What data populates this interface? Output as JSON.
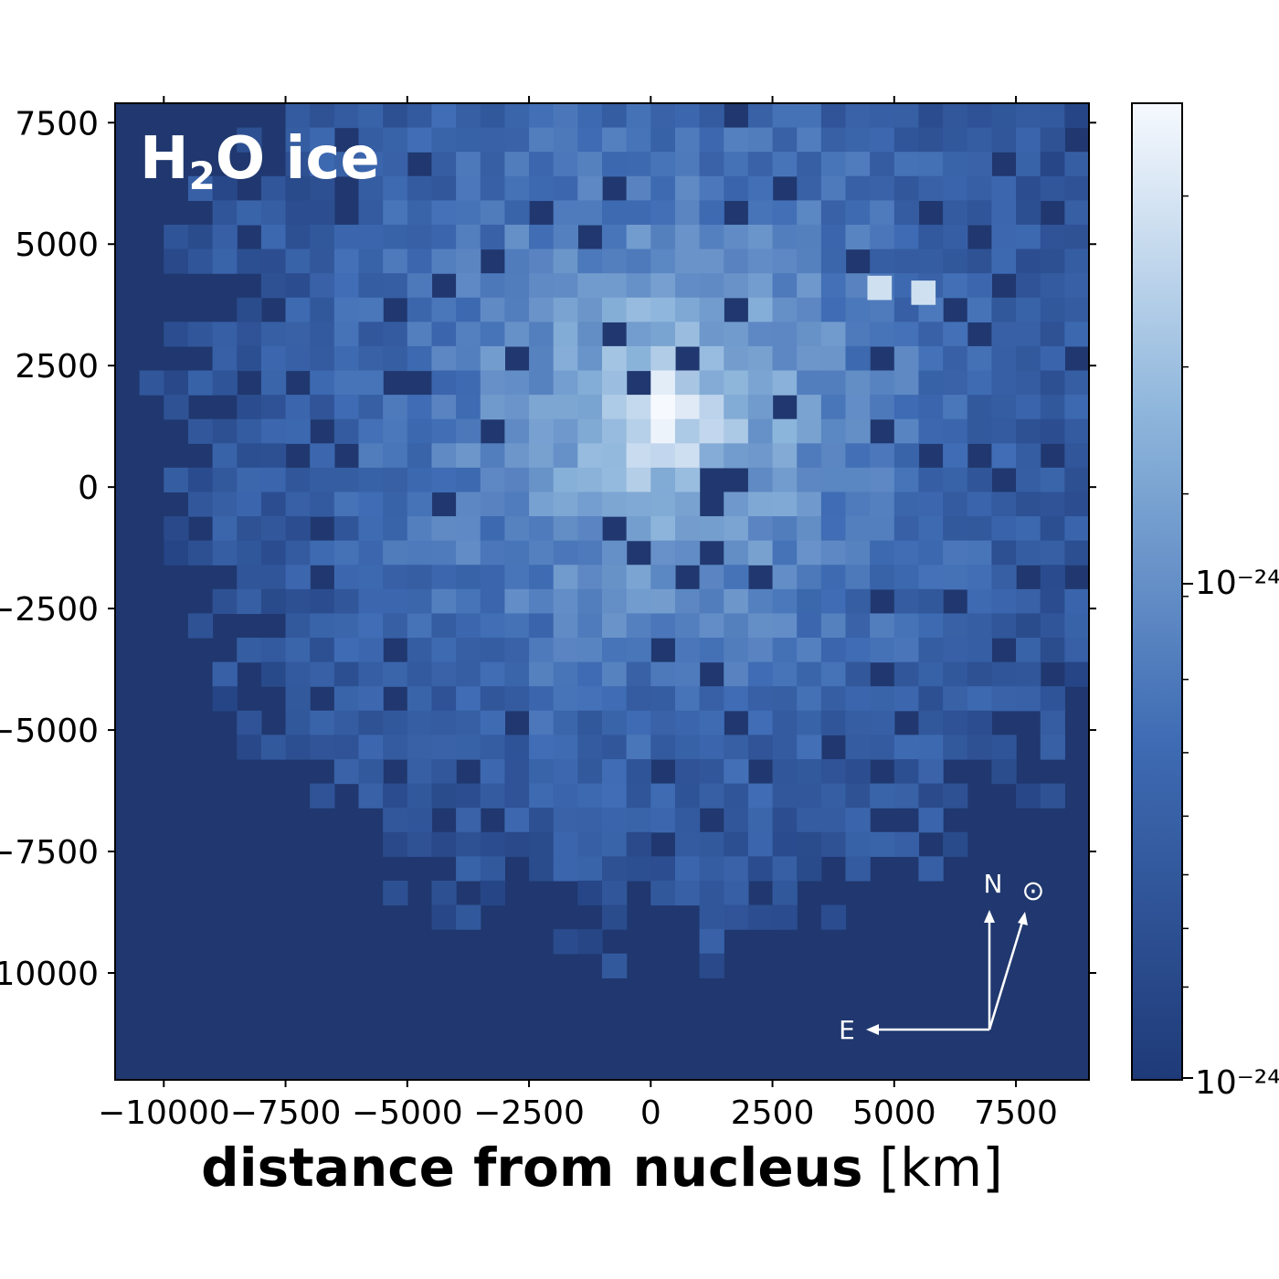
{
  "chart_data": {
    "type": "heatmap",
    "panel_label": {
      "main": "H",
      "subscript": "2",
      "rest": "O ice"
    },
    "xlabel": {
      "bold": "distance from nucleus",
      "unit": "[km]"
    },
    "ylabel": "",
    "xlim": [
      -11000,
      9000
    ],
    "ylim": [
      -12200,
      7900
    ],
    "x_ticks": [
      {
        "value": -10000,
        "label": "−10000"
      },
      {
        "value": -7500,
        "label": "−7500"
      },
      {
        "value": -5000,
        "label": "−5000"
      },
      {
        "value": -2500,
        "label": "−2500"
      },
      {
        "value": 0,
        "label": "0"
      },
      {
        "value": 2500,
        "label": "2500"
      },
      {
        "value": 5000,
        "label": "5000"
      },
      {
        "value": 7500,
        "label": "7500"
      }
    ],
    "y_ticks": [
      {
        "value": 7500,
        "label": "7500"
      },
      {
        "value": 5000,
        "label": "5000"
      },
      {
        "value": 2500,
        "label": "2500"
      },
      {
        "value": 0,
        "label": "0"
      },
      {
        "value": -2500,
        "label": "−2500"
      },
      {
        "value": -5000,
        "label": "−5000"
      },
      {
        "value": -7500,
        "label": "−7500"
      },
      {
        "value": -10000,
        "label": "−10000"
      }
    ],
    "grid": false,
    "pixel_size_km": 500,
    "peak_position_km": [
      300,
      0
    ],
    "bright_spots_km": [
      [
        4700,
        4100
      ],
      [
        5600,
        4000
      ]
    ],
    "colorbar": {
      "scale": "log",
      "colors": [
        "#1f3a78",
        "#3f6cb4",
        "#8db5db",
        "#f6f9fe"
      ],
      "background_color": "#20386f",
      "ticks": [
        {
          "label": "10⁻²⁴"
        },
        {
          "label": "10⁻²⁴"
        }
      ]
    },
    "compass": {
      "north_label": "N",
      "east_label": "E",
      "sun_symbol": "⊙"
    }
  }
}
